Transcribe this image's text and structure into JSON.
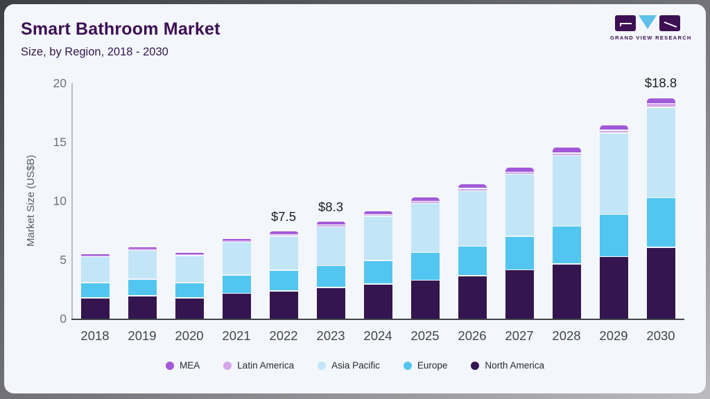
{
  "header": {
    "title": "Smart Bathroom Market",
    "subtitle": "Size, by Region, 2018 - 2030"
  },
  "logo": {
    "text": "GRAND VIEW RESEARCH",
    "block_color": "#3c1053",
    "triangle_color": "#5ec1e8"
  },
  "chart_data": {
    "type": "bar",
    "stacked": true,
    "title": "Smart Bathroom Market Size, by Region, 2018 - 2030",
    "ylabel": "Market Size (US$B)",
    "ylim": [
      0,
      20
    ],
    "yticks": [
      0,
      5,
      10,
      15,
      20
    ],
    "grid": false,
    "legend_position": "bottom",
    "categories": [
      "2018",
      "2019",
      "2020",
      "2021",
      "2022",
      "2023",
      "2024",
      "2025",
      "2026",
      "2027",
      "2028",
      "2029",
      "2030"
    ],
    "series": [
      {
        "name": "North America",
        "color": "#341550",
        "values": [
          1.8,
          2.0,
          1.8,
          2.2,
          2.4,
          2.7,
          3.0,
          3.3,
          3.7,
          4.2,
          4.7,
          5.3,
          6.1
        ]
      },
      {
        "name": "Europe",
        "color": "#52c6f0",
        "values": [
          1.3,
          1.4,
          1.3,
          1.55,
          1.75,
          1.85,
          2.0,
          2.35,
          2.5,
          2.85,
          3.2,
          3.6,
          4.2
        ]
      },
      {
        "name": "Asia Pacific",
        "color": "#c2e6f8",
        "values": [
          2.2,
          2.45,
          2.3,
          2.8,
          2.9,
          3.3,
          3.75,
          4.2,
          4.7,
          5.25,
          6.0,
          6.9,
          7.7
        ]
      },
      {
        "name": "Latin America",
        "color": "#d5a6e8",
        "values": [
          0.08,
          0.1,
          0.08,
          0.1,
          0.15,
          0.15,
          0.15,
          0.15,
          0.2,
          0.2,
          0.2,
          0.25,
          0.3
        ]
      },
      {
        "name": "MEA",
        "color": "#a259d9",
        "values": [
          0.12,
          0.15,
          0.12,
          0.2,
          0.3,
          0.3,
          0.3,
          0.4,
          0.4,
          0.4,
          0.5,
          0.45,
          0.5
        ]
      }
    ],
    "totals": [
      5.5,
      6.1,
      5.6,
      6.85,
      7.5,
      8.3,
      9.2,
      10.4,
      11.5,
      12.9,
      14.6,
      16.5,
      18.8
    ],
    "annotations": [
      {
        "category": "2022",
        "text": "$7.5"
      },
      {
        "category": "2023",
        "text": "$8.3"
      },
      {
        "category": "2030",
        "text": "$18.8"
      }
    ],
    "legend": [
      {
        "label": "MEA",
        "color": "#a259d9"
      },
      {
        "label": "Latin America",
        "color": "#d5a6e8"
      },
      {
        "label": "Asia Pacific",
        "color": "#c2e6f8"
      },
      {
        "label": "Europe",
        "color": "#52c6f0"
      },
      {
        "label": "North America",
        "color": "#341550"
      }
    ]
  }
}
